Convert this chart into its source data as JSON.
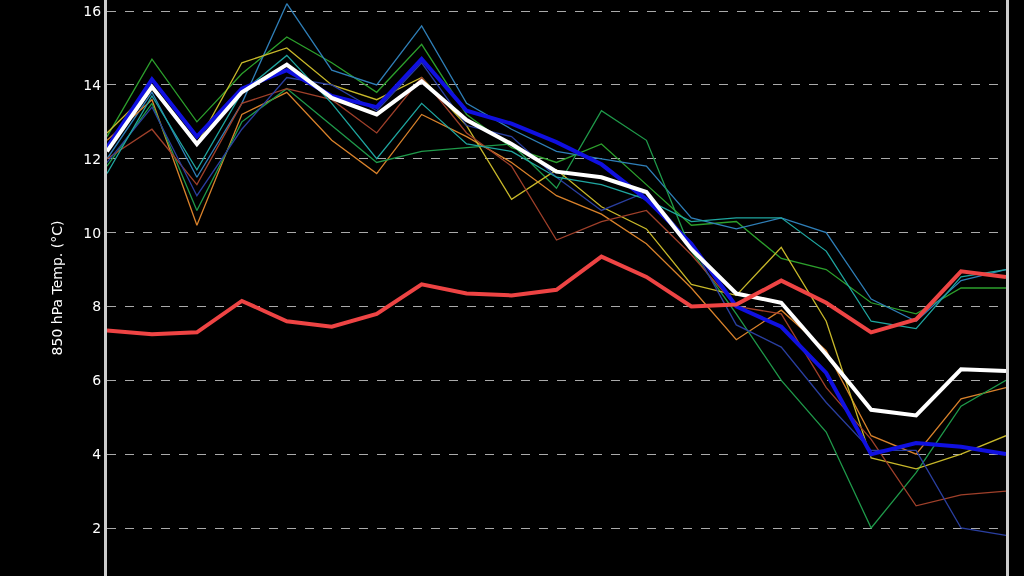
{
  "chart_data": {
    "type": "line",
    "ylabel": "850 hPa Temp. (°C)",
    "categories": [
      null,
      null,
      null,
      null,
      null,
      null,
      null,
      null,
      null,
      null,
      null,
      null,
      null,
      null,
      null,
      null,
      null,
      null,
      null,
      null,
      null
    ],
    "ylim": [
      0.7,
      16.3
    ],
    "yticks": [
      2,
      4,
      6,
      8,
      10,
      12,
      14,
      16
    ],
    "grid": "y",
    "marker": "none",
    "line_style": "solid",
    "series": [
      {
        "color": "#2ca02c",
        "values": [
          12.6,
          14.7,
          13.0,
          14.3,
          15.3,
          14.6,
          13.8,
          15.1,
          13.2,
          12.3,
          11.9,
          12.4,
          11.3,
          10.2,
          10.3,
          9.3,
          9.0,
          8.1,
          7.8,
          8.5,
          8.5
        ]
      },
      {
        "color": "#2f7fb8",
        "values": [
          12.0,
          13.8,
          11.5,
          13.5,
          16.2,
          14.4,
          14.0,
          15.6,
          13.5,
          12.8,
          12.2,
          12.0,
          11.8,
          10.4,
          10.1,
          10.4,
          10.0,
          8.2,
          7.6,
          8.7,
          9.0
        ]
      },
      {
        "color": "#d9822b",
        "values": [
          12.5,
          13.6,
          10.2,
          13.2,
          13.8,
          12.5,
          11.6,
          13.2,
          12.6,
          11.9,
          11.0,
          10.5,
          9.7,
          8.5,
          7.1,
          7.9,
          6.8,
          4.5,
          4.0,
          5.5,
          5.8
        ]
      },
      {
        "color": "#1f9a4a",
        "values": [
          11.8,
          13.5,
          10.6,
          13.0,
          13.9,
          12.9,
          11.9,
          12.2,
          12.3,
          12.4,
          11.2,
          13.3,
          12.5,
          9.5,
          7.8,
          6.0,
          4.6,
          2.0,
          3.5,
          5.3,
          6.0
        ]
      },
      {
        "color": "#c8b82a",
        "values": [
          12.7,
          13.9,
          12.4,
          14.6,
          15.0,
          14.0,
          13.6,
          14.2,
          12.9,
          10.9,
          11.7,
          10.7,
          10.1,
          8.6,
          8.3,
          9.6,
          7.6,
          3.9,
          3.6,
          4.0,
          4.5
        ]
      },
      {
        "color": "#a0402a",
        "values": [
          12.0,
          12.8,
          11.3,
          13.5,
          13.9,
          13.6,
          12.7,
          14.2,
          12.7,
          11.8,
          9.8,
          10.3,
          10.6,
          9.4,
          8.0,
          7.8,
          5.8,
          4.4,
          2.6,
          2.9,
          3.0
        ]
      },
      {
        "color": "#2a3fa0",
        "values": [
          11.9,
          13.4,
          11.0,
          12.8,
          14.2,
          14.0,
          13.3,
          14.6,
          12.9,
          12.6,
          11.5,
          10.6,
          11.1,
          9.7,
          7.5,
          6.9,
          5.4,
          4.1,
          4.1,
          2.0,
          1.8
        ]
      },
      {
        "color": "#1fa6a0",
        "values": [
          11.6,
          13.7,
          11.7,
          13.8,
          14.8,
          13.5,
          12.0,
          13.5,
          12.4,
          12.2,
          11.5,
          11.3,
          10.9,
          10.3,
          10.4,
          10.4,
          9.5,
          7.6,
          7.4,
          8.8,
          9.0
        ]
      },
      {
        "color": "#1010e0",
        "values": [
          12.3,
          14.15,
          12.6,
          13.9,
          14.4,
          13.7,
          13.4,
          14.7,
          13.3,
          12.95,
          12.45,
          11.85,
          10.9,
          9.7,
          8.0,
          7.45,
          6.2,
          4.0,
          4.3,
          4.2,
          4.0
        ]
      },
      {
        "color": "#ffffff",
        "values": [
          12.2,
          13.95,
          12.4,
          13.8,
          14.55,
          13.65,
          13.2,
          14.1,
          13.05,
          12.4,
          11.65,
          11.5,
          11.1,
          9.55,
          8.35,
          8.1,
          6.7,
          5.2,
          5.05,
          6.3,
          6.25
        ]
      },
      {
        "color": "#ee4444",
        "values": [
          7.35,
          7.25,
          7.3,
          8.15,
          7.6,
          7.45,
          7.8,
          8.6,
          8.35,
          8.3,
          8.45,
          9.35,
          8.8,
          8.0,
          8.05,
          8.7,
          8.1,
          7.3,
          7.65,
          8.95,
          8.8
        ]
      }
    ]
  }
}
